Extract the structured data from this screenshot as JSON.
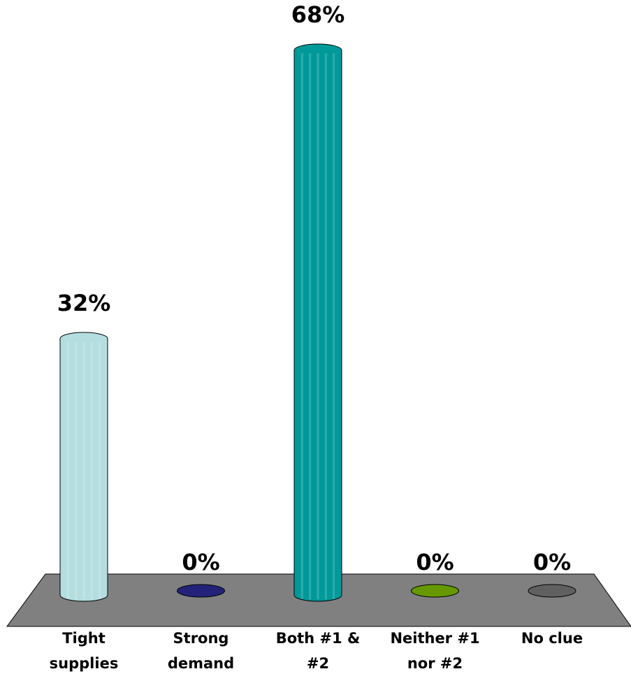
{
  "chart_data": {
    "type": "bar",
    "categories": [
      "Tight supplies",
      "Strong demand",
      "Both #1 & #2",
      "Neither #1 nor #2",
      "No clue"
    ],
    "values": [
      32,
      0,
      68,
      0,
      0
    ],
    "value_labels": [
      "32%",
      "0%",
      "68%",
      "0%",
      "0%"
    ],
    "colors": [
      "#b4dde0",
      "#22227a",
      "#009999",
      "#669900",
      "#606060"
    ]
  }
}
